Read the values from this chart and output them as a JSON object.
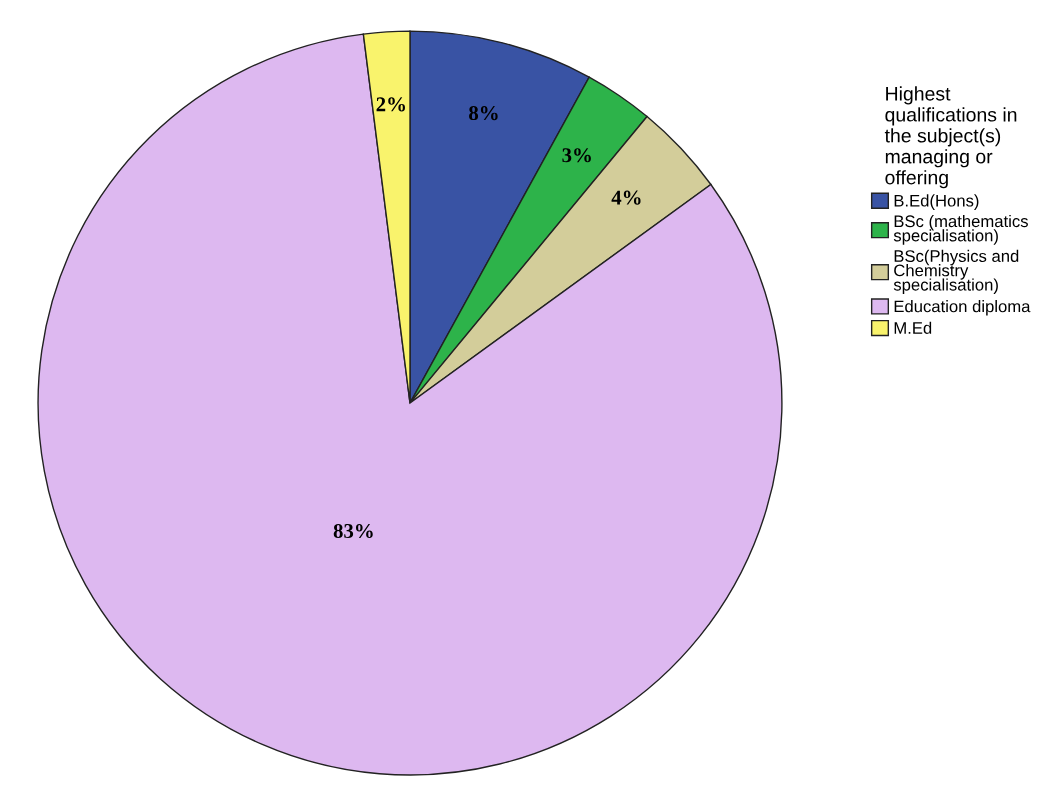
{
  "chart_data": {
    "type": "pie",
    "legend_title": "Highest\nqualifications in\nthe subject(s)\nmanaging or\noffering",
    "categories": [
      "B.Ed(Hons)",
      "BSc (mathematics\nspecialisation)",
      "BSc(Physics and\nChemistry\nspecialisation)",
      "Education diploma",
      "M.Ed"
    ],
    "values": [
      8,
      3,
      4,
      83,
      2
    ],
    "value_labels": [
      "8%",
      "3%",
      "4%",
      "83%",
      "2%"
    ],
    "colors": [
      "#3953a4",
      "#2db34a",
      "#d3cd9a",
      "#ddb8f0",
      "#f9f36c"
    ],
    "legend": "top right"
  }
}
